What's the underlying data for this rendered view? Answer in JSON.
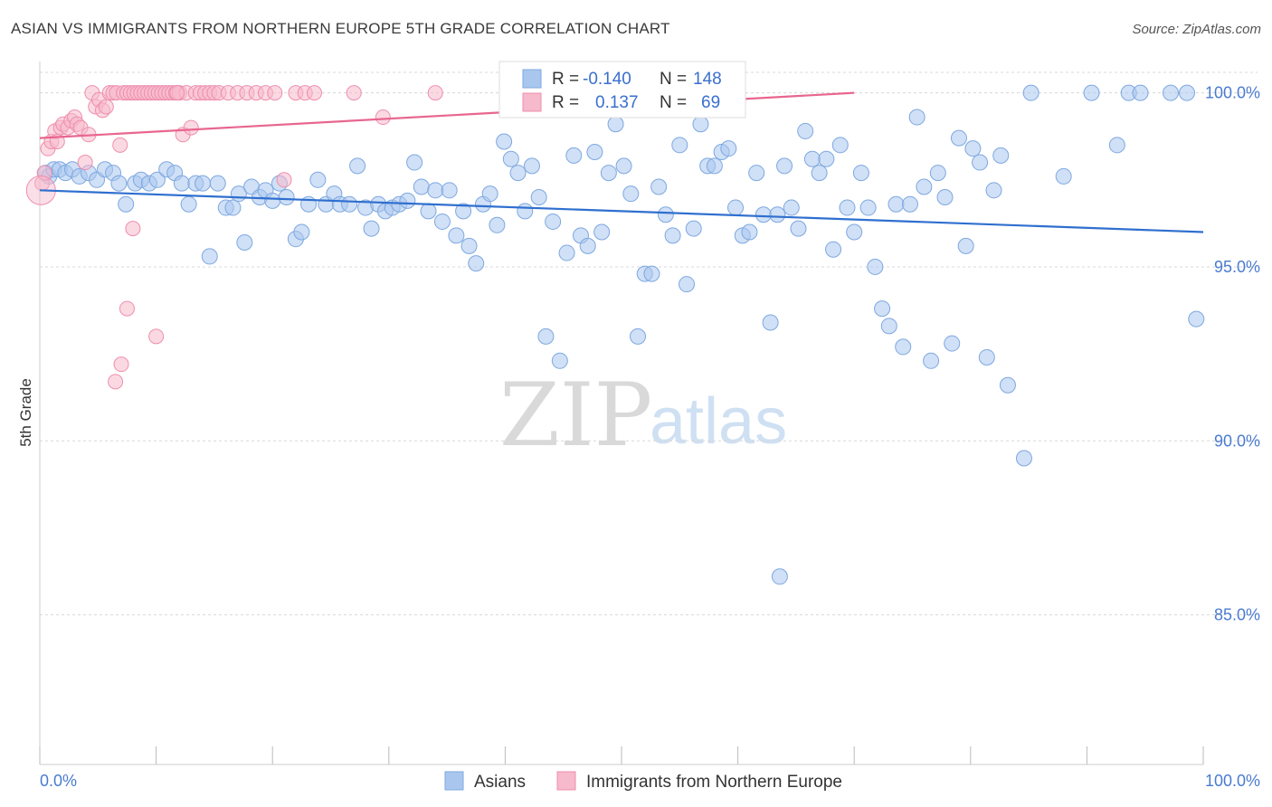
{
  "title": "ASIAN VS IMMIGRANTS FROM NORTHERN EUROPE 5TH GRADE CORRELATION CHART",
  "source": "Source: ZipAtlas.com",
  "watermark": {
    "zip": "ZIP",
    "atlas": "atlas"
  },
  "colors": {
    "blue_fill": "#a9c7ee",
    "blue_stroke": "#7ea8e0",
    "blue_line": "#2f6fcf",
    "pink_fill": "#f7b9cc",
    "pink_stroke": "#ee8fae",
    "pink_line": "#e8668f",
    "grid": "#d8d8d8",
    "axis_text": "#4a7bd0"
  },
  "legend_box": [
    {
      "r_label": "R =",
      "r_value": "-0.140",
      "n_label": "N =",
      "n_value": "148"
    },
    {
      "r_label": "R =",
      "r_value": "0.137",
      "n_label": "N =",
      "n_value": "69"
    }
  ],
  "chart_data": {
    "type": "scatter",
    "title": "ASIAN VS IMMIGRANTS FROM NORTHERN EUROPE 5TH GRADE CORRELATION CHART",
    "xlabel": "",
    "ylabel": "5th Grade",
    "xlim": [
      0,
      100
    ],
    "ylim": [
      80.7,
      100.9
    ],
    "x_tick_labels": [
      "0.0%",
      "100.0%"
    ],
    "y_ticks": [
      85,
      90,
      95,
      100
    ],
    "y_tick_labels": [
      "85.0%",
      "90.0%",
      "95.0%",
      "100.0%"
    ],
    "grid": true,
    "legend_position": "bottom-center",
    "series": [
      {
        "name": "Asians",
        "color": "#a9c7ee",
        "r": -0.14,
        "n": 148,
        "trend": [
          [
            0,
            97.2
          ],
          [
            100,
            96.0
          ]
        ],
        "points": [
          [
            0.5,
            97.7
          ],
          [
            0.8,
            97.6
          ],
          [
            1.2,
            97.8
          ],
          [
            1.7,
            97.8
          ],
          [
            2.2,
            97.7
          ],
          [
            2.8,
            97.8
          ],
          [
            3.4,
            97.6
          ],
          [
            4.2,
            97.7
          ],
          [
            4.9,
            97.5
          ],
          [
            5.6,
            97.8
          ],
          [
            6.3,
            97.7
          ],
          [
            6.8,
            97.4
          ],
          [
            7.4,
            96.8
          ],
          [
            8.2,
            97.4
          ],
          [
            8.7,
            97.5
          ],
          [
            9.4,
            97.4
          ],
          [
            10.1,
            97.5
          ],
          [
            10.9,
            97.8
          ],
          [
            11.6,
            97.7
          ],
          [
            12.2,
            97.4
          ],
          [
            12.8,
            96.8
          ],
          [
            13.4,
            97.4
          ],
          [
            14.0,
            97.4
          ],
          [
            14.6,
            95.3
          ],
          [
            15.3,
            97.4
          ],
          [
            16.0,
            96.7
          ],
          [
            16.6,
            96.7
          ],
          [
            17.1,
            97.1
          ],
          [
            17.6,
            95.7
          ],
          [
            18.2,
            97.3
          ],
          [
            18.9,
            97.0
          ],
          [
            19.4,
            97.2
          ],
          [
            20.0,
            96.9
          ],
          [
            20.6,
            97.4
          ],
          [
            21.2,
            97.0
          ],
          [
            22.0,
            95.8
          ],
          [
            22.5,
            96.0
          ],
          [
            23.1,
            96.8
          ],
          [
            23.9,
            97.5
          ],
          [
            24.6,
            96.8
          ],
          [
            25.3,
            97.1
          ],
          [
            25.8,
            96.8
          ],
          [
            26.6,
            96.8
          ],
          [
            27.3,
            97.9
          ],
          [
            28.0,
            96.7
          ],
          [
            28.5,
            96.1
          ],
          [
            29.1,
            96.8
          ],
          [
            29.7,
            96.6
          ],
          [
            30.3,
            96.7
          ],
          [
            30.9,
            96.8
          ],
          [
            31.6,
            96.9
          ],
          [
            32.2,
            98.0
          ],
          [
            32.8,
            97.3
          ],
          [
            33.4,
            96.6
          ],
          [
            34.0,
            97.2
          ],
          [
            34.6,
            96.3
          ],
          [
            35.2,
            97.2
          ],
          [
            35.8,
            95.9
          ],
          [
            36.4,
            96.6
          ],
          [
            36.9,
            95.6
          ],
          [
            37.5,
            95.1
          ],
          [
            38.1,
            96.8
          ],
          [
            38.7,
            97.1
          ],
          [
            39.3,
            96.2
          ],
          [
            39.9,
            98.6
          ],
          [
            40.5,
            98.1
          ],
          [
            41.1,
            97.7
          ],
          [
            41.7,
            96.6
          ],
          [
            42.3,
            97.9
          ],
          [
            42.9,
            97.0
          ],
          [
            43.5,
            93.0
          ],
          [
            44.1,
            96.3
          ],
          [
            44.7,
            92.3
          ],
          [
            45.3,
            95.4
          ],
          [
            45.9,
            98.2
          ],
          [
            46.5,
            95.9
          ],
          [
            47.1,
            95.6
          ],
          [
            47.7,
            98.3
          ],
          [
            48.3,
            96.0
          ],
          [
            48.9,
            97.7
          ],
          [
            49.5,
            99.1
          ],
          [
            50.2,
            97.9
          ],
          [
            50.8,
            97.1
          ],
          [
            51.4,
            93.0
          ],
          [
            52.0,
            94.8
          ],
          [
            52.6,
            94.8
          ],
          [
            53.2,
            97.3
          ],
          [
            53.8,
            96.5
          ],
          [
            54.4,
            95.9
          ],
          [
            55.0,
            98.5
          ],
          [
            55.6,
            94.5
          ],
          [
            56.2,
            96.1
          ],
          [
            56.8,
            99.1
          ],
          [
            57.4,
            97.9
          ],
          [
            58.0,
            97.9
          ],
          [
            58.6,
            98.3
          ],
          [
            59.2,
            98.4
          ],
          [
            59.8,
            96.7
          ],
          [
            60.4,
            95.9
          ],
          [
            61.0,
            96.0
          ],
          [
            61.6,
            97.7
          ],
          [
            62.2,
            96.5
          ],
          [
            62.8,
            93.4
          ],
          [
            63.4,
            96.5
          ],
          [
            64.0,
            97.9
          ],
          [
            64.6,
            96.7
          ],
          [
            65.2,
            96.1
          ],
          [
            65.8,
            98.9
          ],
          [
            66.4,
            98.1
          ],
          [
            67.0,
            97.7
          ],
          [
            67.6,
            98.1
          ],
          [
            68.2,
            95.5
          ],
          [
            68.8,
            98.5
          ],
          [
            69.4,
            96.7
          ],
          [
            70.0,
            96.0
          ],
          [
            70.6,
            97.7
          ],
          [
            71.2,
            96.7
          ],
          [
            71.8,
            95.0
          ],
          [
            72.4,
            93.8
          ],
          [
            73.0,
            93.3
          ],
          [
            73.6,
            96.8
          ],
          [
            74.2,
            92.7
          ],
          [
            74.8,
            96.8
          ],
          [
            75.4,
            99.3
          ],
          [
            76.0,
            97.3
          ],
          [
            76.6,
            92.3
          ],
          [
            77.2,
            97.7
          ],
          [
            77.8,
            97.0
          ],
          [
            78.4,
            92.8
          ],
          [
            79.0,
            98.7
          ],
          [
            79.6,
            95.6
          ],
          [
            80.2,
            98.4
          ],
          [
            80.8,
            98.0
          ],
          [
            81.4,
            92.4
          ],
          [
            82.0,
            97.2
          ],
          [
            82.6,
            98.2
          ],
          [
            83.2,
            91.6
          ],
          [
            84.6,
            89.5
          ],
          [
            88.0,
            97.6
          ],
          [
            92.6,
            98.5
          ],
          [
            93.6,
            100.0
          ],
          [
            94.6,
            100.0
          ],
          [
            97.2,
            100.0
          ],
          [
            98.6,
            100.0
          ],
          [
            99.4,
            93.5
          ],
          [
            63.6,
            86.1
          ],
          [
            85.2,
            100.0
          ],
          [
            90.4,
            100.0
          ]
        ]
      },
      {
        "name": "Immigrants from Northern Europe",
        "color": "#f7b9cc",
        "r": 0.137,
        "n": 69,
        "trend": [
          [
            0,
            98.7
          ],
          [
            70,
            100.0
          ]
        ],
        "points": [
          [
            0.2,
            97.4
          ],
          [
            0.4,
            97.7
          ],
          [
            0.7,
            98.4
          ],
          [
            1.0,
            98.6
          ],
          [
            1.3,
            98.9
          ],
          [
            1.5,
            98.6
          ],
          [
            1.8,
            99.0
          ],
          [
            2.0,
            99.1
          ],
          [
            2.4,
            99.0
          ],
          [
            2.7,
            99.2
          ],
          [
            3.0,
            99.3
          ],
          [
            3.2,
            99.1
          ],
          [
            3.5,
            99.0
          ],
          [
            3.9,
            98.0
          ],
          [
            4.2,
            98.8
          ],
          [
            4.5,
            100.0
          ],
          [
            4.8,
            99.6
          ],
          [
            5.1,
            99.8
          ],
          [
            5.4,
            99.5
          ],
          [
            5.7,
            99.6
          ],
          [
            6.0,
            100.0
          ],
          [
            6.3,
            100.0
          ],
          [
            6.6,
            100.0
          ],
          [
            6.9,
            98.5
          ],
          [
            7.2,
            100.0
          ],
          [
            7.5,
            100.0
          ],
          [
            7.8,
            100.0
          ],
          [
            8.1,
            100.0
          ],
          [
            8.4,
            100.0
          ],
          [
            8.7,
            100.0
          ],
          [
            9.0,
            100.0
          ],
          [
            9.3,
            100.0
          ],
          [
            9.6,
            100.0
          ],
          [
            9.9,
            100.0
          ],
          [
            10.2,
            100.0
          ],
          [
            10.5,
            100.0
          ],
          [
            10.8,
            100.0
          ],
          [
            11.1,
            100.0
          ],
          [
            11.4,
            100.0
          ],
          [
            11.7,
            100.0
          ],
          [
            12.0,
            100.0
          ],
          [
            12.3,
            98.8
          ],
          [
            12.6,
            100.0
          ],
          [
            13.0,
            99.0
          ],
          [
            13.4,
            100.0
          ],
          [
            13.8,
            100.0
          ],
          [
            14.2,
            100.0
          ],
          [
            14.6,
            100.0
          ],
          [
            15.0,
            100.0
          ],
          [
            15.4,
            100.0
          ],
          [
            16.2,
            100.0
          ],
          [
            17.0,
            100.0
          ],
          [
            17.8,
            100.0
          ],
          [
            18.6,
            100.0
          ],
          [
            19.4,
            100.0
          ],
          [
            20.2,
            100.0
          ],
          [
            21.0,
            97.5
          ],
          [
            22.0,
            100.0
          ],
          [
            22.8,
            100.0
          ],
          [
            23.6,
            100.0
          ],
          [
            6.5,
            91.7
          ],
          [
            7.0,
            92.2
          ],
          [
            7.5,
            93.8
          ],
          [
            8.0,
            96.1
          ],
          [
            10.0,
            93.0
          ],
          [
            11.8,
            100.0
          ],
          [
            27.0,
            100.0
          ],
          [
            29.5,
            99.3
          ],
          [
            34.0,
            100.0
          ]
        ]
      }
    ]
  }
}
